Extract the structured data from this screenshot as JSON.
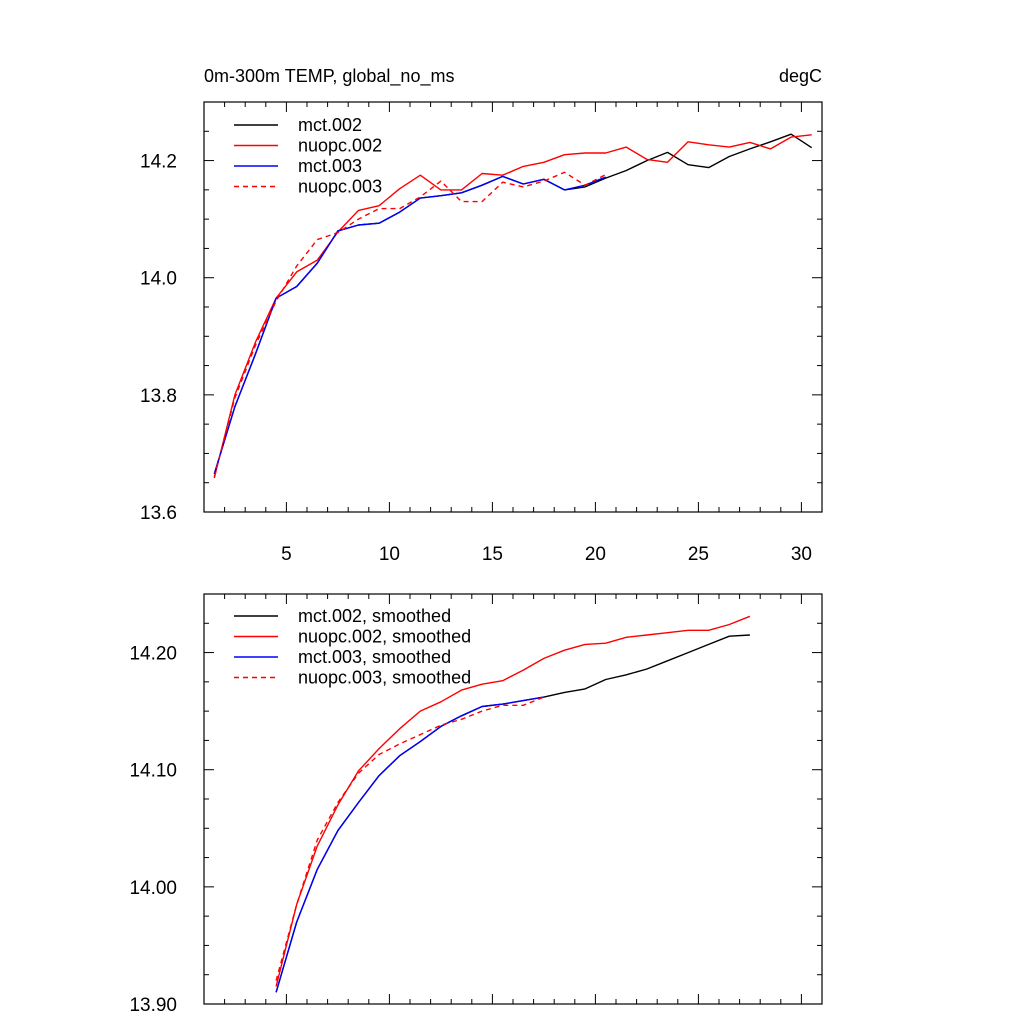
{
  "chart_data": [
    {
      "type": "line",
      "title": "0m-300m TEMP, global_no_ms",
      "units": "degC",
      "xlim": [
        1,
        31
      ],
      "ylim": [
        13.6,
        14.3
      ],
      "xticks": [
        5,
        10,
        15,
        20,
        25,
        30
      ],
      "xtick_labels": [
        "5",
        "10",
        "15",
        "20",
        "25",
        "30"
      ],
      "yticks": [
        13.6,
        13.8,
        14.0,
        14.2
      ],
      "ytick_labels": [
        "13.6",
        "13.8",
        "14.0",
        "14.2"
      ],
      "series": [
        {
          "name": "mct.002",
          "color": "#000000",
          "dash": "solid",
          "x": [
            1.5,
            2.5,
            3.5,
            4.5,
            5.5,
            6.5,
            7.5,
            8.5,
            9.5,
            10.5,
            11.5,
            12.5,
            13.5,
            14.5,
            15.5,
            16.5,
            17.5,
            18.5,
            19.5,
            20.5,
            21.5,
            22.5,
            23.5,
            24.5,
            25.5,
            26.5,
            27.5,
            28.5,
            29.5,
            30.5
          ],
          "y": [
            13.665,
            13.78,
            13.87,
            13.965,
            13.985,
            14.025,
            14.08,
            14.09,
            14.093,
            14.112,
            14.136,
            14.14,
            14.145,
            14.158,
            14.173,
            14.16,
            14.168,
            14.15,
            14.155,
            14.17,
            14.183,
            14.2,
            14.214,
            14.193,
            14.188,
            14.207,
            14.22,
            14.232,
            14.245,
            14.222
          ]
        },
        {
          "name": "nuopc.002",
          "color": "#ff0000",
          "dash": "solid",
          "x": [
            1.5,
            2.5,
            3.5,
            4.5,
            5.5,
            6.5,
            7.5,
            8.5,
            9.5,
            10.5,
            11.5,
            12.5,
            13.5,
            14.5,
            15.5,
            16.5,
            17.5,
            18.5,
            19.5,
            20.5,
            21.5,
            22.5,
            23.5,
            24.5,
            25.5,
            26.5,
            27.5,
            28.5,
            29.5,
            30.5
          ],
          "y": [
            13.658,
            13.8,
            13.89,
            13.965,
            14.01,
            14.03,
            14.078,
            14.115,
            14.123,
            14.152,
            14.175,
            14.15,
            14.15,
            14.178,
            14.175,
            14.19,
            14.197,
            14.21,
            14.213,
            14.213,
            14.223,
            14.202,
            14.197,
            14.232,
            14.227,
            14.223,
            14.231,
            14.22,
            14.24,
            14.244
          ]
        },
        {
          "name": "mct.003",
          "color": "#0000ff",
          "dash": "solid",
          "x": [
            1.5,
            2.5,
            3.5,
            4.5,
            5.5,
            6.5,
            7.5,
            8.5,
            9.5,
            10.5,
            11.5,
            12.5,
            13.5,
            14.5,
            15.5,
            16.5,
            17.5,
            18.5,
            19.5,
            20.5
          ],
          "y": [
            13.665,
            13.78,
            13.87,
            13.965,
            13.985,
            14.025,
            14.08,
            14.09,
            14.093,
            14.112,
            14.136,
            14.14,
            14.145,
            14.158,
            14.173,
            14.16,
            14.168,
            14.15,
            14.158,
            14.172
          ]
        },
        {
          "name": "nuopc.003",
          "color": "#ff0000",
          "dash": "dashed",
          "x": [
            1.5,
            2.5,
            3.5,
            4.5,
            5.5,
            6.5,
            7.5,
            8.5,
            9.5,
            10.5,
            11.5,
            12.5,
            13.5,
            14.5,
            15.5,
            16.5,
            17.5,
            18.5,
            19.5,
            20.5
          ],
          "y": [
            13.66,
            13.795,
            13.885,
            13.96,
            14.02,
            14.065,
            14.077,
            14.1,
            14.118,
            14.118,
            14.138,
            14.165,
            14.13,
            14.13,
            14.163,
            14.155,
            14.165,
            14.18,
            14.158,
            14.176
          ]
        }
      ]
    },
    {
      "type": "line",
      "xlim": [
        1,
        31
      ],
      "ylim": [
        13.9,
        14.25
      ],
      "xticks": [
        5,
        10,
        15,
        20,
        25,
        30
      ],
      "xtick_labels": [],
      "yticks": [
        13.9,
        14.0,
        14.1,
        14.2
      ],
      "ytick_labels": [
        "13.90",
        "14.00",
        "14.10",
        "14.20"
      ],
      "series": [
        {
          "name": "mct.002, smoothed",
          "color": "#000000",
          "dash": "solid",
          "x": [
            4.5,
            5.5,
            6.5,
            7.5,
            8.5,
            9.5,
            10.5,
            11.5,
            12.5,
            13.5,
            14.5,
            15.5,
            16.5,
            17.5,
            18.5,
            19.5,
            20.5,
            21.5,
            22.5,
            23.5,
            24.5,
            25.5,
            26.5,
            27.5
          ],
          "y": [
            13.91,
            13.97,
            14.015,
            14.048,
            14.072,
            14.095,
            14.112,
            14.124,
            14.137,
            14.146,
            14.154,
            14.156,
            14.159,
            14.162,
            14.166,
            14.169,
            14.177,
            14.181,
            14.186,
            14.193,
            14.2,
            14.207,
            14.214,
            14.215
          ]
        },
        {
          "name": "nuopc.002, smoothed",
          "color": "#ff0000",
          "dash": "solid",
          "x": [
            4.5,
            5.5,
            6.5,
            7.5,
            8.5,
            9.5,
            10.5,
            11.5,
            12.5,
            13.5,
            14.5,
            15.5,
            16.5,
            17.5,
            18.5,
            19.5,
            20.5,
            21.5,
            22.5,
            23.5,
            24.5,
            25.5,
            26.5,
            27.5
          ],
          "y": [
            13.915,
            13.985,
            14.035,
            14.07,
            14.099,
            14.118,
            14.135,
            14.15,
            14.158,
            14.168,
            14.173,
            14.176,
            14.185,
            14.195,
            14.202,
            14.207,
            14.208,
            14.213,
            14.215,
            14.217,
            14.219,
            14.219,
            14.224,
            14.231
          ]
        },
        {
          "name": "mct.003, smoothed",
          "color": "#0000ff",
          "dash": "solid",
          "x": [
            4.5,
            5.5,
            6.5,
            7.5,
            8.5,
            9.5,
            10.5,
            11.5,
            12.5,
            13.5,
            14.5,
            15.5,
            16.5,
            17.5
          ],
          "y": [
            13.91,
            13.97,
            14.015,
            14.048,
            14.072,
            14.095,
            14.112,
            14.124,
            14.137,
            14.146,
            14.154,
            14.156,
            14.159,
            14.162
          ]
        },
        {
          "name": "nuopc.003, smoothed",
          "color": "#ff0000",
          "dash": "dashed",
          "x": [
            4.5,
            5.5,
            6.5,
            7.5,
            8.5,
            9.5,
            10.5,
            11.5,
            12.5,
            13.5,
            14.5,
            15.5,
            16.5,
            17.5
          ],
          "y": [
            13.92,
            13.985,
            14.04,
            14.072,
            14.097,
            14.113,
            14.122,
            14.13,
            14.138,
            14.143,
            14.15,
            14.155,
            14.155,
            14.162
          ]
        }
      ]
    }
  ]
}
